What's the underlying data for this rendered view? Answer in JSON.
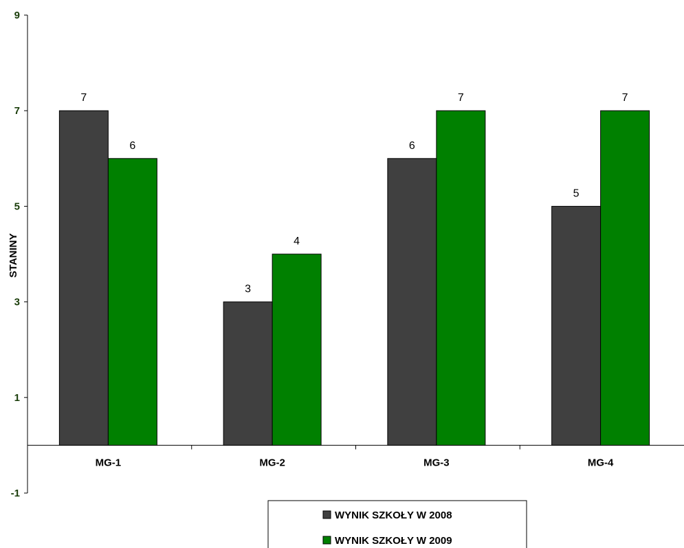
{
  "chart_data": {
    "type": "bar",
    "categories": [
      "MG-1",
      "MG-2",
      "MG-3",
      "MG-4"
    ],
    "series": [
      {
        "name": "WYNIK SZKOŁY W 2008",
        "values": [
          7,
          3,
          6,
          5
        ],
        "color": "#404040"
      },
      {
        "name": "WYNIK SZKOŁY W 2009",
        "values": [
          6,
          4,
          7,
          7
        ],
        "color": "#008000"
      }
    ],
    "title": "",
    "xlabel": "",
    "ylabel": "STANINY",
    "ylim": [
      -1,
      9
    ],
    "yticks": [
      -1,
      1,
      3,
      5,
      7,
      9
    ],
    "grid": false,
    "data_labels": true,
    "legend_position": "bottom"
  }
}
